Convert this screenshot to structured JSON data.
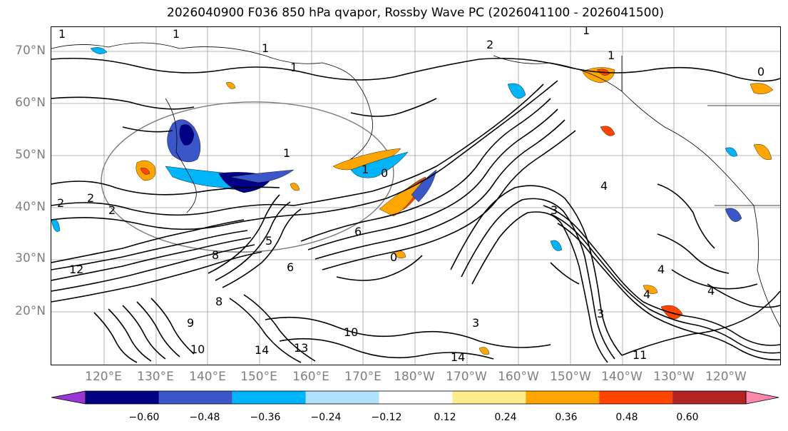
{
  "title": "2026040900 F036 850 hPa qvapor, Rossby Wave PC (2026041100 - 2026041500)",
  "lat_labels": [
    "70°N",
    "60°N",
    "50°N",
    "40°N",
    "30°N",
    "20°N"
  ],
  "lon_labels": [
    "120°E",
    "130°E",
    "140°E",
    "150°E",
    "160°E",
    "170°E",
    "180°W",
    "170°W",
    "160°W",
    "150°W",
    "140°W",
    "130°W",
    "120°W"
  ],
  "colorbar": {
    "colors": [
      "#9a35d6",
      "#000084",
      "#3a56c9",
      "#00b4f9",
      "#b0e2fc",
      "#ffffff",
      "#ffec8b",
      "#ffa500",
      "#ff4500",
      "#b22222",
      "#ff87aa"
    ],
    "tick_labels": [
      "−0.60",
      "−0.48",
      "−0.36",
      "−0.24",
      "−0.12",
      "0.12",
      "0.24",
      "0.36",
      "0.48",
      "0.60"
    ]
  },
  "contour_labels": [
    "1",
    "1",
    "1",
    "1",
    "1",
    "1",
    "1",
    "0",
    "0",
    "1",
    "2",
    "2",
    "2",
    "2",
    "3",
    "3",
    "4",
    "4",
    "4",
    "5",
    "6",
    "6",
    "8",
    "8",
    "9",
    "10",
    "10",
    "11",
    "12",
    "13",
    "14",
    "14",
    "0",
    "3",
    "4"
  ],
  "colors": {
    "contour": "#000000",
    "grid": "#999999",
    "coast": "#000000",
    "axis_label": "#7f7f7f"
  }
}
